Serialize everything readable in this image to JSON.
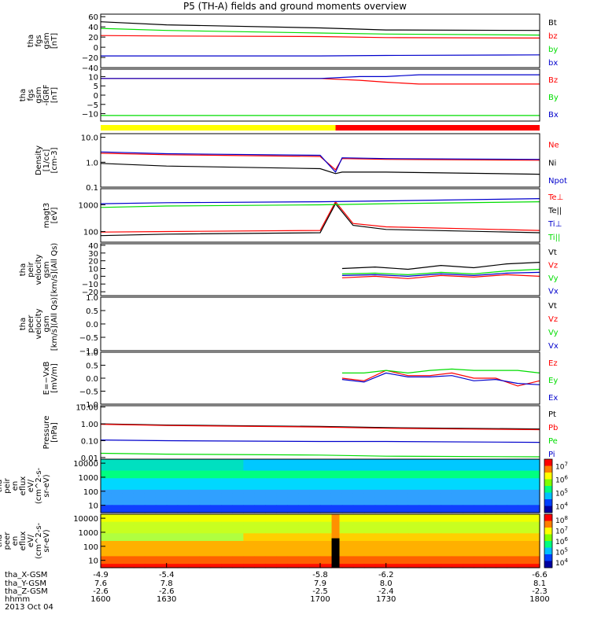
{
  "title": "P5 (TH-A) fields and ground moments overview",
  "colors": {
    "black": "#000000",
    "red": "#ff0000",
    "green": "#00dd00",
    "blue": "#0000cc",
    "yellow": "#ffff00"
  },
  "chart_data": [
    {
      "type": "line",
      "ylabel": [
        "tha",
        "fgs",
        "gsm",
        "[nT]"
      ],
      "yticks": [
        "60",
        "40",
        "20",
        "0",
        "−20",
        "−40"
      ],
      "ylim": [
        -40,
        65
      ],
      "series": [
        {
          "name": "Bt",
          "color": "#000000",
          "x": [
            1600,
            1630,
            1700,
            1730,
            1800
          ],
          "y": [
            50,
            44,
            38,
            34,
            33
          ]
        },
        {
          "name": "bz",
          "color": "#ff0000",
          "x": [
            1600,
            1630,
            1700,
            1730,
            1800
          ],
          "y": [
            23,
            22,
            21,
            19,
            18
          ]
        },
        {
          "name": "by",
          "color": "#00dd00",
          "x": [
            1600,
            1630,
            1700,
            1730,
            1800
          ],
          "y": [
            37,
            33,
            28,
            26,
            24
          ]
        },
        {
          "name": "bx",
          "color": "#0000cc",
          "x": [
            1600,
            1630,
            1700,
            1730,
            1800
          ],
          "y": [
            -17,
            -17,
            -17,
            -16,
            -15
          ]
        }
      ]
    },
    {
      "type": "line",
      "ylabel": [
        "tha",
        "fgs",
        "gsm",
        "-IGRF",
        "[nT]"
      ],
      "yticks": [
        "10",
        "5",
        "0",
        "−5",
        "−10"
      ],
      "ylim": [
        -14,
        14
      ],
      "series": [
        {
          "name": "Bz",
          "color": "#ff0000",
          "x": [
            1600,
            1630,
            1700,
            1718,
            1730,
            1745,
            1800
          ],
          "y": [
            9,
            9,
            9,
            8,
            7,
            6,
            6
          ]
        },
        {
          "name": "By",
          "color": "#00dd00",
          "x": [
            1600,
            1630,
            1700,
            1730,
            1800
          ],
          "y": [
            -11,
            -11,
            -11,
            -11,
            -11
          ]
        },
        {
          "name": "Bx",
          "color": "#0000cc",
          "x": [
            1600,
            1630,
            1700,
            1718,
            1730,
            1745,
            1800
          ],
          "y": [
            9,
            9,
            9,
            10,
            10,
            11,
            11
          ]
        }
      ]
    },
    {
      "type": "line",
      "ylabel": [
        "Density",
        "[1/cc]",
        "[cm-3]"
      ],
      "yticks": [
        "10.0",
        "1.0",
        "0.1"
      ],
      "log": true,
      "ylim": [
        0.1,
        14
      ],
      "series": [
        {
          "name": "Ne",
          "color": "#ff0000",
          "x": [
            1600,
            1630,
            1700,
            1707,
            1710,
            1730,
            1800
          ],
          "y": [
            2.3,
            2.0,
            1.7,
            0.5,
            1.4,
            1.3,
            1.2
          ]
        },
        {
          "name": "Ni",
          "color": "#000000",
          "x": [
            1600,
            1630,
            1700,
            1707,
            1710,
            1730,
            1800
          ],
          "y": [
            0.9,
            0.7,
            0.55,
            0.35,
            0.4,
            0.4,
            0.33
          ]
        },
        {
          "name": "Npot",
          "color": "#0000cc",
          "x": [
            1600,
            1630,
            1700,
            1707,
            1710,
            1730,
            1800
          ],
          "y": [
            2.6,
            2.2,
            1.9,
            0.4,
            1.5,
            1.4,
            1.3
          ]
        }
      ]
    },
    {
      "type": "line",
      "ylabel": [
        "magt3",
        "[eV]"
      ],
      "yticks": [
        "1000",
        "100"
      ],
      "log": true,
      "ylim": [
        40,
        4000
      ],
      "series": [
        {
          "name": "Te⊥",
          "color": "#ff0000",
          "x": [
            1600,
            1630,
            1700,
            1707,
            1715,
            1730,
            1800
          ],
          "y": [
            95,
            100,
            110,
            1300,
            200,
            150,
            110
          ]
        },
        {
          "name": "Te||",
          "color": "#000000",
          "x": [
            1600,
            1630,
            1700,
            1707,
            1715,
            1730,
            1800
          ],
          "y": [
            70,
            80,
            90,
            1100,
            170,
            120,
            90
          ]
        },
        {
          "name": "Ti⊥",
          "color": "#0000cc",
          "x": [
            1600,
            1630,
            1700,
            1730,
            1800
          ],
          "y": [
            1100,
            1200,
            1300,
            1400,
            1700
          ]
        },
        {
          "name": "Ti||",
          "color": "#00dd00",
          "x": [
            1600,
            1630,
            1700,
            1730,
            1800
          ],
          "y": [
            800,
            900,
            1000,
            1100,
            1300
          ]
        }
      ]
    },
    {
      "type": "line",
      "ylabel": [
        "tha",
        "peir",
        "velocity",
        "gsm",
        "[km/s](All Qs)"
      ],
      "yticks": [
        "40",
        "30",
        "20",
        "10",
        "0",
        "−10",
        "−20"
      ],
      "ylim": [
        -25,
        42
      ],
      "series": [
        {
          "name": "Vt",
          "color": "#000000",
          "x": [
            1710,
            1725,
            1740,
            1755,
            1770,
            1785,
            1800
          ],
          "y": [
            10,
            12,
            9,
            14,
            11,
            16,
            18
          ]
        },
        {
          "name": "Vz",
          "color": "#ff0000",
          "x": [
            1710,
            1725,
            1740,
            1755,
            1770,
            1785,
            1800
          ],
          "y": [
            -2,
            0,
            -3,
            1,
            -1,
            2,
            0
          ]
        },
        {
          "name": "Vy",
          "color": "#00dd00",
          "x": [
            1710,
            1725,
            1740,
            1755,
            1770,
            1785,
            1800
          ],
          "y": [
            3,
            4,
            2,
            5,
            3,
            7,
            9
          ]
        },
        {
          "name": "Vx",
          "color": "#0000cc",
          "x": [
            1710,
            1725,
            1740,
            1755,
            1770,
            1785,
            1800
          ],
          "y": [
            1,
            2,
            0,
            3,
            1,
            4,
            5
          ]
        }
      ]
    },
    {
      "type": "line",
      "ylabel": [
        "tha",
        "peer",
        "velocity",
        "gsm",
        "[km/s](All Qs)"
      ],
      "yticks": [
        "1.0",
        "0.5",
        "0.0",
        "−0.5",
        "−1.0"
      ],
      "ylim": [
        -1.0,
        1.0
      ],
      "series": [
        {
          "name": "Vt",
          "color": "#000000",
          "x": [],
          "y": []
        },
        {
          "name": "Vz",
          "color": "#ff0000",
          "x": [],
          "y": []
        },
        {
          "name": "Vy",
          "color": "#00dd00",
          "x": [],
          "y": []
        },
        {
          "name": "Vx",
          "color": "#0000cc",
          "x": [],
          "y": []
        }
      ]
    },
    {
      "type": "line",
      "ylabel": [
        "E=−VxB",
        "[mV/m]"
      ],
      "yticks": [
        "1.0",
        "0.5",
        "0.0",
        "−0.5",
        "−1.0"
      ],
      "ylim": [
        -1.0,
        1.0
      ],
      "series": [
        {
          "name": "Ez",
          "color": "#ff0000",
          "x": [
            1710,
            1720,
            1730,
            1740,
            1750,
            1760,
            1770,
            1780,
            1790,
            1800
          ],
          "y": [
            0.0,
            -0.1,
            0.3,
            0.1,
            0.1,
            0.2,
            0.0,
            0.0,
            -0.3,
            -0.1
          ]
        },
        {
          "name": "Ey",
          "color": "#00dd00",
          "x": [
            1710,
            1720,
            1730,
            1740,
            1750,
            1760,
            1770,
            1780,
            1790,
            1800
          ],
          "y": [
            0.2,
            0.2,
            0.3,
            0.2,
            0.3,
            0.35,
            0.3,
            0.3,
            0.3,
            0.2
          ]
        },
        {
          "name": "Ex",
          "color": "#0000cc",
          "x": [
            1710,
            1720,
            1730,
            1740,
            1750,
            1760,
            1770,
            1780,
            1790,
            1800
          ],
          "y": [
            -0.05,
            -0.15,
            0.2,
            0.05,
            0.05,
            0.1,
            -0.1,
            -0.05,
            -0.2,
            -0.25
          ]
        }
      ]
    },
    {
      "type": "line",
      "ylabel": [
        "Pressure",
        "[nPa]"
      ],
      "yticks": [
        "10.00",
        "1.00",
        "0.10",
        "0.01"
      ],
      "log": true,
      "ylim": [
        0.008,
        12
      ],
      "series": [
        {
          "name": "Pt",
          "color": "#000000",
          "x": [
            1600,
            1630,
            1700,
            1730,
            1800
          ],
          "y": [
            1.0,
            0.85,
            0.7,
            0.6,
            0.5
          ]
        },
        {
          "name": "Pb",
          "color": "#ff0000",
          "x": [
            1600,
            1630,
            1700,
            1730,
            1800
          ],
          "y": [
            0.95,
            0.8,
            0.65,
            0.55,
            0.45
          ]
        },
        {
          "name": "Pe",
          "color": "#00dd00",
          "x": [
            1600,
            1630,
            1700,
            1730,
            1800
          ],
          "y": [
            0.018,
            0.016,
            0.014,
            0.012,
            0.011
          ]
        },
        {
          "name": "Pi",
          "color": "#0000cc",
          "x": [
            1600,
            1630,
            1700,
            1730,
            1800
          ],
          "y": [
            0.11,
            0.1,
            0.09,
            0.09,
            0.08
          ]
        }
      ]
    },
    {
      "type": "heatmap",
      "ylabel": [
        "tha",
        "peir",
        "en",
        "eflux",
        "eV/",
        "(cm^2-s-",
        "sr-eV)"
      ],
      "yticks": [
        "10000",
        "1000",
        "100",
        "10"
      ],
      "colorbar": [
        "10^7",
        "10^6",
        "10^5",
        "10^4"
      ]
    },
    {
      "type": "heatmap",
      "ylabel": [
        "tha",
        "peer",
        "en",
        "eflux",
        "eV/",
        "(cm^2-s-",
        "sr-eV)"
      ],
      "yticks": [
        "10000",
        "1000",
        "100",
        "10"
      ],
      "colorbar": [
        "10^8",
        "10^7",
        "10^6",
        "10^5",
        "10^4"
      ]
    }
  ],
  "xaxis": {
    "range": [
      1600,
      1800
    ],
    "columns": [
      {
        "x": "-4.9",
        "y": "7.6",
        "z": "-2.6",
        "t": "1600"
      },
      {
        "x": "-5.4",
        "y": "7.8",
        "z": "-2.6",
        "t": "1630"
      },
      {
        "x": "-5.8",
        "y": "7.9",
        "z": "-2.5",
        "t": "1700"
      },
      {
        "x": "-6.2",
        "y": "8.0",
        "z": "-2.4",
        "t": "1730"
      },
      {
        "x": "-6.6",
        "y": "8.1",
        "z": "-2.3",
        "t": "1800"
      }
    ],
    "row_labels": [
      "tha_X-GSM",
      "tha_Y-GSM",
      "tha_Z-GSM",
      "hhmm",
      "2013 Oct 04"
    ]
  },
  "mode_bar": {
    "yellow_until": 1707,
    "colors": [
      "#ffff00",
      "#ff0000"
    ]
  }
}
